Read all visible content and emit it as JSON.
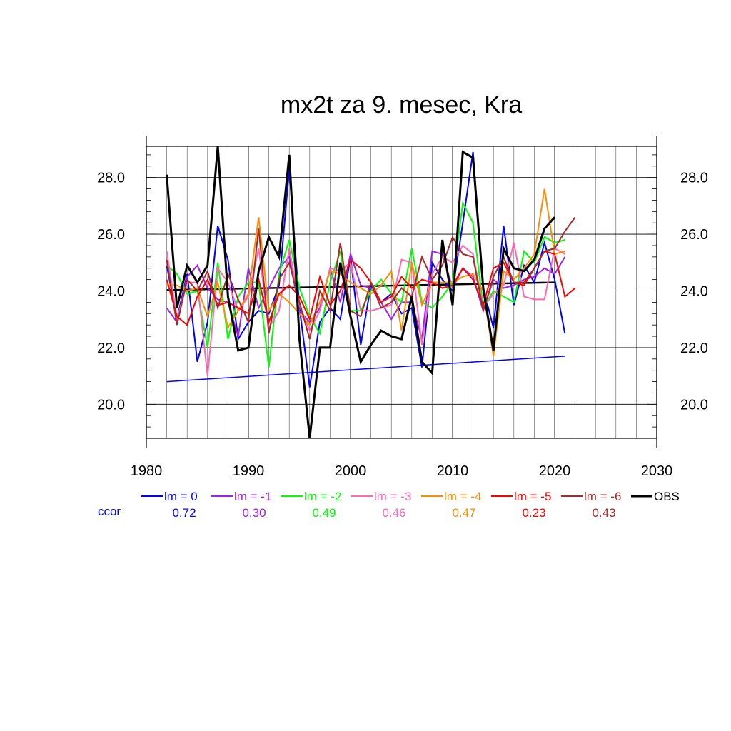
{
  "chart_data": {
    "type": "line",
    "title": "mx2t za 9. mesec, Kra",
    "xlabel": "",
    "ylabel": "",
    "xlim": [
      1980,
      2030
    ],
    "ylim": [
      18.8,
      29.1
    ],
    "x_ticks": [
      1980,
      1990,
      2000,
      2010,
      2020,
      2030
    ],
    "y_ticks": [
      "20.0",
      "22.0",
      "24.0",
      "26.0",
      "28.0"
    ],
    "grid": true,
    "ccor_label": "ccor",
    "series": [
      {
        "name": "lm = 0",
        "color": "#0000ff",
        "ccor": "0.72",
        "x": [
          1982,
          1983,
          1984,
          1985,
          1986,
          1987,
          1988,
          1989,
          1990,
          1991,
          1992,
          1993,
          1994,
          1995,
          1996,
          1997,
          1998,
          1999,
          2000,
          2001,
          2002,
          2003,
          2004,
          2005,
          2006,
          2007,
          2008,
          2009,
          2010,
          2011,
          2012,
          2013,
          2014,
          2015,
          2016,
          2017,
          2018,
          2019,
          2020,
          2021
        ],
        "y": [
          24.9,
          23.0,
          24.6,
          21.5,
          22.9,
          26.3,
          25.1,
          22.3,
          22.9,
          23.3,
          23.2,
          24.2,
          28.3,
          23.4,
          20.6,
          22.9,
          23.4,
          23.0,
          25.2,
          22.1,
          24.2,
          23.6,
          23.9,
          23.2,
          23.4,
          21.3,
          25.0,
          24.4,
          24.0,
          26.4,
          28.9,
          24.1,
          22.7,
          26.3,
          23.5,
          24.9,
          24.3,
          25.7,
          24.4,
          22.5
        ]
      },
      {
        "name": "lm = -1",
        "color": "#a020f0",
        "ccor": "0.30",
        "x": [
          1982,
          1983,
          1984,
          1985,
          1986,
          1987,
          1988,
          1989,
          1990,
          1991,
          1992,
          1993,
          1994,
          1995,
          1996,
          1997,
          1998,
          1999,
          2000,
          2001,
          2002,
          2003,
          2004,
          2005,
          2006,
          2007,
          2008,
          2009,
          2010,
          2011,
          2012,
          2013,
          2014,
          2015,
          2016,
          2017,
          2018,
          2019,
          2020,
          2021
        ],
        "y": [
          23.4,
          22.9,
          24.5,
          24.9,
          24.1,
          23.7,
          23.6,
          22.4,
          24.8,
          23.4,
          24.1,
          24.8,
          25.2,
          23.3,
          22.9,
          23.4,
          24.8,
          23.6,
          25.3,
          24.2,
          24.1,
          23.6,
          23.0,
          23.6,
          23.6,
          22.3,
          25.4,
          25.3,
          24.1,
          24.8,
          24.5,
          23.3,
          24.4,
          24.1,
          24.2,
          24.4,
          24.5,
          24.8,
          24.6,
          25.2
        ]
      },
      {
        "name": "lm = -2",
        "color": "#00ff00",
        "ccor": "0.49",
        "x": [
          1982,
          1983,
          1984,
          1985,
          1986,
          1987,
          1988,
          1989,
          1990,
          1991,
          1992,
          1993,
          1994,
          1995,
          1996,
          1997,
          1998,
          1999,
          2000,
          2001,
          2002,
          2003,
          2004,
          2005,
          2006,
          2007,
          2008,
          2009,
          2010,
          2011,
          2012,
          2013,
          2014,
          2015,
          2016,
          2017,
          2018,
          2019,
          2020,
          2021
        ],
        "y": [
          24.9,
          24.6,
          23.9,
          24.0,
          22.0,
          25.0,
          22.3,
          23.8,
          24.3,
          24.3,
          21.3,
          24.6,
          25.8,
          24.1,
          23.1,
          22.5,
          24.3,
          25.4,
          23.3,
          23.3,
          24.0,
          24.4,
          23.9,
          23.6,
          25.5,
          23.6,
          23.4,
          23.8,
          24.3,
          27.1,
          26.4,
          23.4,
          24.0,
          23.8,
          23.6,
          25.4,
          25.0,
          25.9,
          25.7,
          25.8
        ]
      },
      {
        "name": "lm = -3",
        "color": "#ff69b4",
        "ccor": "0.46",
        "x": [
          1982,
          1983,
          1984,
          1985,
          1986,
          1987,
          1988,
          1989,
          1990,
          1991,
          1992,
          1993,
          1994,
          1995,
          1996,
          1997,
          1998,
          1999,
          2000,
          2001,
          2002,
          2003,
          2004,
          2005,
          2006,
          2007,
          2008,
          2009,
          2010,
          2011,
          2012,
          2013,
          2014,
          2015,
          2016,
          2017,
          2018,
          2019,
          2020,
          2021
        ],
        "y": [
          25.4,
          23.0,
          24.3,
          24.3,
          21.0,
          24.8,
          24.3,
          23.3,
          23.8,
          25.5,
          22.7,
          23.3,
          25.5,
          23.5,
          22.6,
          23.3,
          24.8,
          24.7,
          25.0,
          23.3,
          23.3,
          23.4,
          23.5,
          25.1,
          25.0,
          22.1,
          24.6,
          25.2,
          25.0,
          25.6,
          25.3,
          23.4,
          23.9,
          24.2,
          25.7,
          23.8,
          23.7,
          23.7,
          25.5,
          25.3
        ]
      },
      {
        "name": "lm = -4",
        "color": "#ff8c00",
        "ccor": "0.47",
        "x": [
          1982,
          1983,
          1984,
          1985,
          1986,
          1987,
          1988,
          1989,
          1990,
          1991,
          1992,
          1993,
          1994,
          1995,
          1996,
          1997,
          1998,
          1999,
          2000,
          2001,
          2002,
          2003,
          2004,
          2005,
          2006,
          2007,
          2008,
          2009,
          2010,
          2011,
          2012,
          2013,
          2014,
          2015,
          2016,
          2017,
          2018,
          2019,
          2020,
          2021
        ],
        "y": [
          24.2,
          24.2,
          24.0,
          24.1,
          23.1,
          24.3,
          22.7,
          23.3,
          23.9,
          26.6,
          23.3,
          23.9,
          23.6,
          23.2,
          22.8,
          23.6,
          24.7,
          24.6,
          24.3,
          24.1,
          23.9,
          24.2,
          24.7,
          22.6,
          25.0,
          23.5,
          24.3,
          24.3,
          24.3,
          24.5,
          24.6,
          24.0,
          21.7,
          24.7,
          24.4,
          24.8,
          25.3,
          27.6,
          25.3,
          25.4
        ]
      },
      {
        "name": "lm = -5",
        "color": "#ff0000",
        "ccor": "0.23",
        "x": [
          1982,
          1983,
          1984,
          1985,
          1986,
          1987,
          1988,
          1989,
          1990,
          1991,
          1992,
          1993,
          1994,
          1995,
          1996,
          1997,
          1998,
          1999,
          2000,
          2001,
          2002,
          2003,
          2004,
          2005,
          2006,
          2007,
          2008,
          2009,
          2010,
          2011,
          2012,
          2013,
          2014,
          2015,
          2016,
          2017,
          2018,
          2019,
          2020,
          2021,
          2022
        ],
        "y": [
          24.4,
          23.1,
          22.8,
          23.8,
          24.4,
          23.5,
          23.6,
          23.4,
          23.2,
          24.4,
          22.9,
          23.9,
          24.2,
          23.8,
          23.0,
          24.5,
          23.5,
          24.0,
          25.1,
          24.8,
          24.3,
          23.6,
          23.8,
          24.5,
          24.1,
          24.4,
          24.3,
          24.1,
          24.2,
          24.8,
          24.4,
          23.5,
          24.8,
          25.0,
          24.3,
          24.2,
          24.8,
          25.4,
          25.3,
          23.8,
          24.1
        ]
      },
      {
        "name": "lm = -6",
        "color": "#a52a2a",
        "ccor": "0.43",
        "x": [
          1982,
          1983,
          1984,
          1985,
          1986,
          1987,
          1988,
          1989,
          1990,
          1991,
          1992,
          1993,
          1994,
          1995,
          1996,
          1997,
          1998,
          1999,
          2000,
          2001,
          2002,
          2003,
          2004,
          2005,
          2006,
          2007,
          2008,
          2009,
          2010,
          2011,
          2012,
          2013,
          2014,
          2015,
          2016,
          2017,
          2018,
          2019,
          2020,
          2021,
          2022
        ],
        "y": [
          25.1,
          22.8,
          24.4,
          24.0,
          24.7,
          23.4,
          24.6,
          23.7,
          22.9,
          26.2,
          22.5,
          24.4,
          25.0,
          23.6,
          22.3,
          24.0,
          23.3,
          25.7,
          23.3,
          23.1,
          24.3,
          23.4,
          23.6,
          24.1,
          23.8,
          25.2,
          24.4,
          24.9,
          25.9,
          25.3,
          25.2,
          23.3,
          24.5,
          25.2,
          24.3,
          24.3,
          24.8,
          25.4,
          25.5,
          26.1,
          26.6
        ]
      },
      {
        "name": "OBS",
        "color": "#000000",
        "ccor": "",
        "x": [
          1982,
          1983,
          1984,
          1985,
          1986,
          1987,
          1988,
          1989,
          1990,
          1991,
          1992,
          1993,
          1994,
          1995,
          1996,
          1997,
          1998,
          1999,
          2000,
          2001,
          2002,
          2003,
          2004,
          2005,
          2006,
          2007,
          2008,
          2009,
          2010,
          2011,
          2012,
          2013,
          2014,
          2015,
          2016,
          2017,
          2018,
          2019,
          2020
        ],
        "y": [
          28.1,
          23.4,
          24.9,
          24.3,
          24.9,
          29.1,
          23.8,
          21.9,
          22.0,
          24.7,
          25.9,
          25.2,
          28.8,
          22.3,
          18.8,
          22.0,
          22.0,
          25.0,
          23.1,
          21.5,
          22.1,
          22.6,
          22.4,
          22.3,
          23.8,
          21.5,
          21.1,
          25.8,
          23.5,
          28.9,
          28.7,
          24.1,
          21.9,
          25.5,
          24.8,
          24.7,
          25.1,
          26.2,
          26.6
        ]
      }
    ],
    "trend_lines": [
      {
        "color": "#0000ff",
        "x": [
          1982,
          2021
        ],
        "y": [
          20.8,
          21.7
        ]
      },
      {
        "color": "#000000",
        "x": [
          1982,
          2020
        ],
        "y": [
          24.03,
          24.3
        ]
      }
    ],
    "legend_position": "bottom"
  }
}
